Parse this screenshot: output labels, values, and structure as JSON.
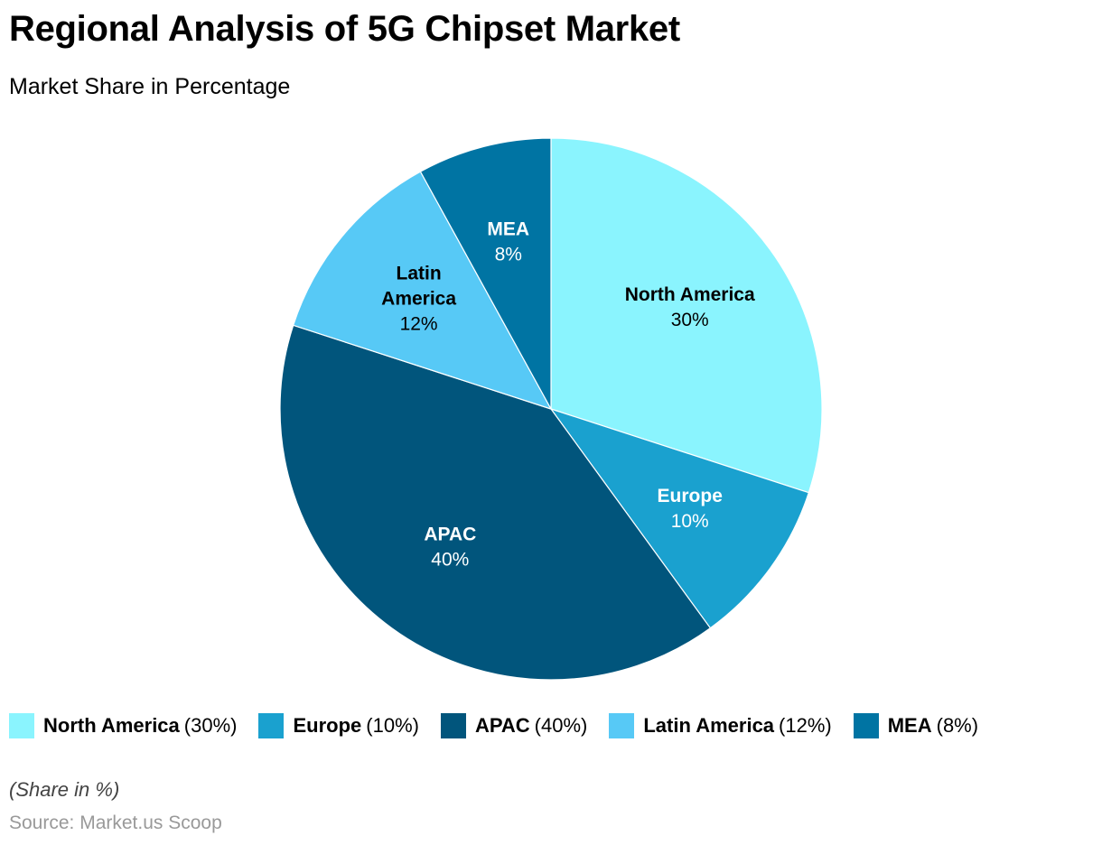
{
  "chart_data": {
    "type": "pie",
    "title": "Regional Analysis of 5G Chipset Market",
    "subtitle": "Market Share in Percentage",
    "slices": [
      {
        "label": "North America",
        "label_lines": [
          "North America"
        ],
        "value": 30,
        "value_text": "30%",
        "legend_value": "(30%)",
        "color": "#8af4fe",
        "text_color": "#000000"
      },
      {
        "label": "Europe",
        "label_lines": [
          "Europe"
        ],
        "value": 10,
        "value_text": "10%",
        "legend_value": "(10%)",
        "color": "#1aa1cf",
        "text_color": "#ffffff"
      },
      {
        "label": "APAC",
        "label_lines": [
          "APAC"
        ],
        "value": 40,
        "value_text": "40%",
        "legend_value": "(40%)",
        "color": "#01557c",
        "text_color": "#ffffff"
      },
      {
        "label": "Latin America",
        "label_lines": [
          "Latin",
          "America"
        ],
        "value": 12,
        "value_text": "12%",
        "legend_value": "(12%)",
        "color": "#57c9f6",
        "text_color": "#000000"
      },
      {
        "label": "MEA",
        "label_lines": [
          "MEA"
        ],
        "value": 8,
        "value_text": "8%",
        "legend_value": "(8%)",
        "color": "#0074a3",
        "text_color": "#ffffff"
      }
    ],
    "legend_position": "bottom-left",
    "start_angle": "top, clockwise"
  },
  "note": "(Share in %)",
  "source": "Source: Market.us Scoop"
}
